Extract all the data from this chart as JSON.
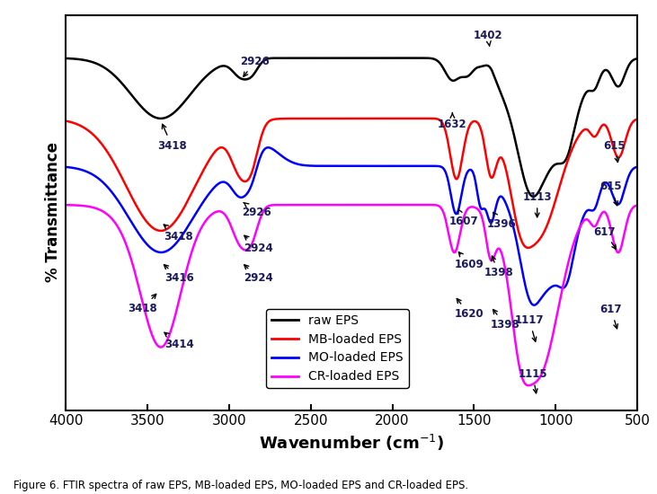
{
  "xlabel": "Wavenumber (cm$^{-1}$)",
  "ylabel": "% Transmittance",
  "line_colors": [
    "#000000",
    "#ff0000",
    "#0000ff",
    "#ff00ff"
  ],
  "line_labels": [
    "raw EPS",
    "MB-loaded EPS",
    "MO-loaded EPS",
    "CR-loaded EPS"
  ],
  "caption": "Figure 6. FTIR spectra of raw EPS, MB-loaded EPS, MO-loaded EPS and CR-loaded EPS.",
  "annot_color": "#1a1a5e",
  "xticks": [
    500,
    1000,
    1500,
    2000,
    2500,
    3000,
    3500,
    4000
  ]
}
